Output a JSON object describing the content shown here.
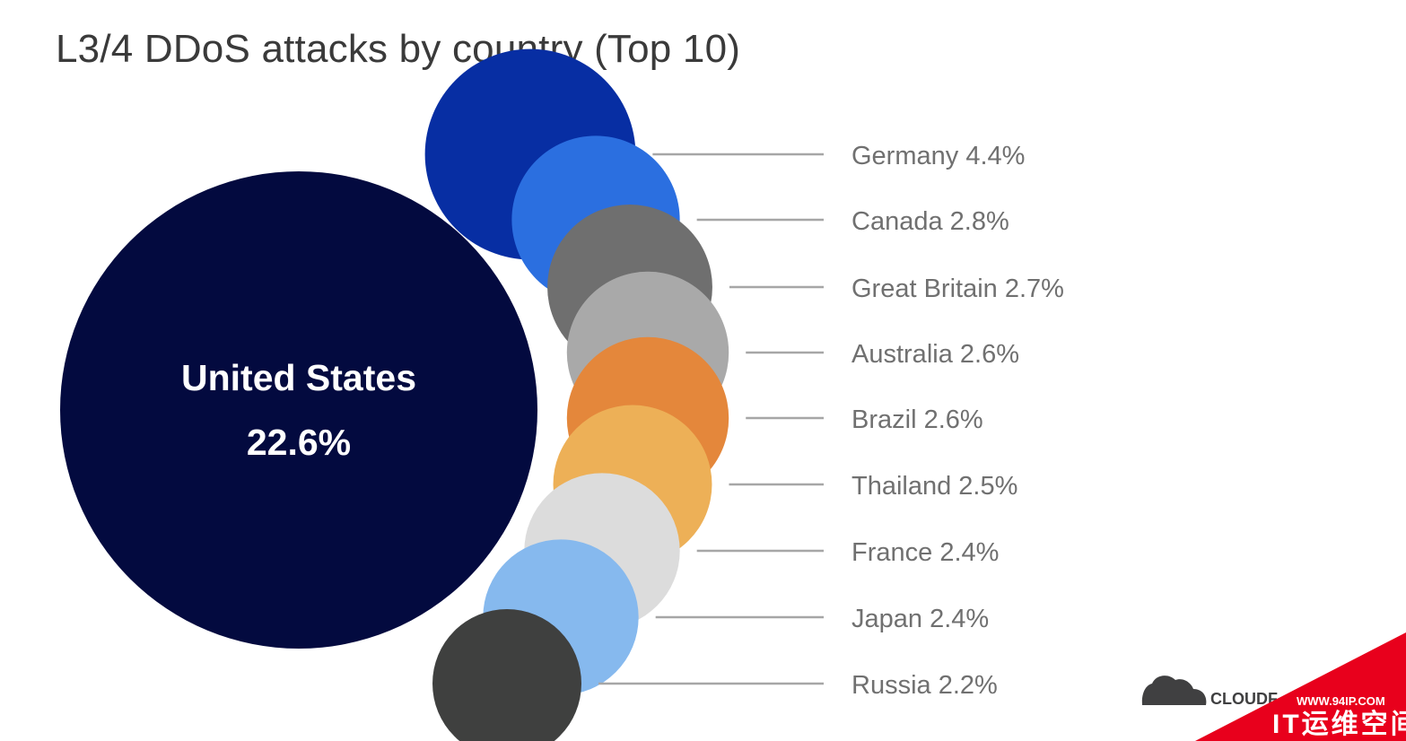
{
  "title": "L3/4 DDoS attacks by country (Top 10)",
  "chart_data": {
    "type": "bubble",
    "title": "L3/4 DDoS attacks by country (Top 10)",
    "unit": "%",
    "series": [
      {
        "country": "United States",
        "value": 22.6,
        "color": "#030a3f"
      },
      {
        "country": "Germany",
        "value": 4.4,
        "color": "#072ea3"
      },
      {
        "country": "Canada",
        "value": 2.8,
        "color": "#2b6fe0"
      },
      {
        "country": "Great Britain",
        "value": 2.7,
        "color": "#6f6f6f"
      },
      {
        "country": "Australia",
        "value": 2.6,
        "color": "#a9a9a9"
      },
      {
        "country": "Brazil",
        "value": 2.6,
        "color": "#e4873b"
      },
      {
        "country": "Thailand",
        "value": 2.5,
        "color": "#edb057"
      },
      {
        "country": "France",
        "value": 2.4,
        "color": "#dcdcdc"
      },
      {
        "country": "Japan",
        "value": 2.4,
        "color": "#86b9ee"
      },
      {
        "country": "Russia",
        "value": 2.2,
        "color": "#3f403f"
      }
    ],
    "labels": [
      "Germany 4.4%",
      "Canada 2.8%",
      "Great Britain 2.7%",
      "Australia 2.6%",
      "Brazil 2.6%",
      "Thailand 2.5%",
      "France 2.4%",
      "Japan 2.4%",
      "Russia 2.2%"
    ],
    "big_label": {
      "name": "United States",
      "value": "22.6%"
    }
  },
  "branding": {
    "logo_text": "CLOUDF",
    "watermark_url": "WWW.94IP.COM",
    "watermark_text": "IT运维空间",
    "watermark_color": "#e8001c"
  }
}
